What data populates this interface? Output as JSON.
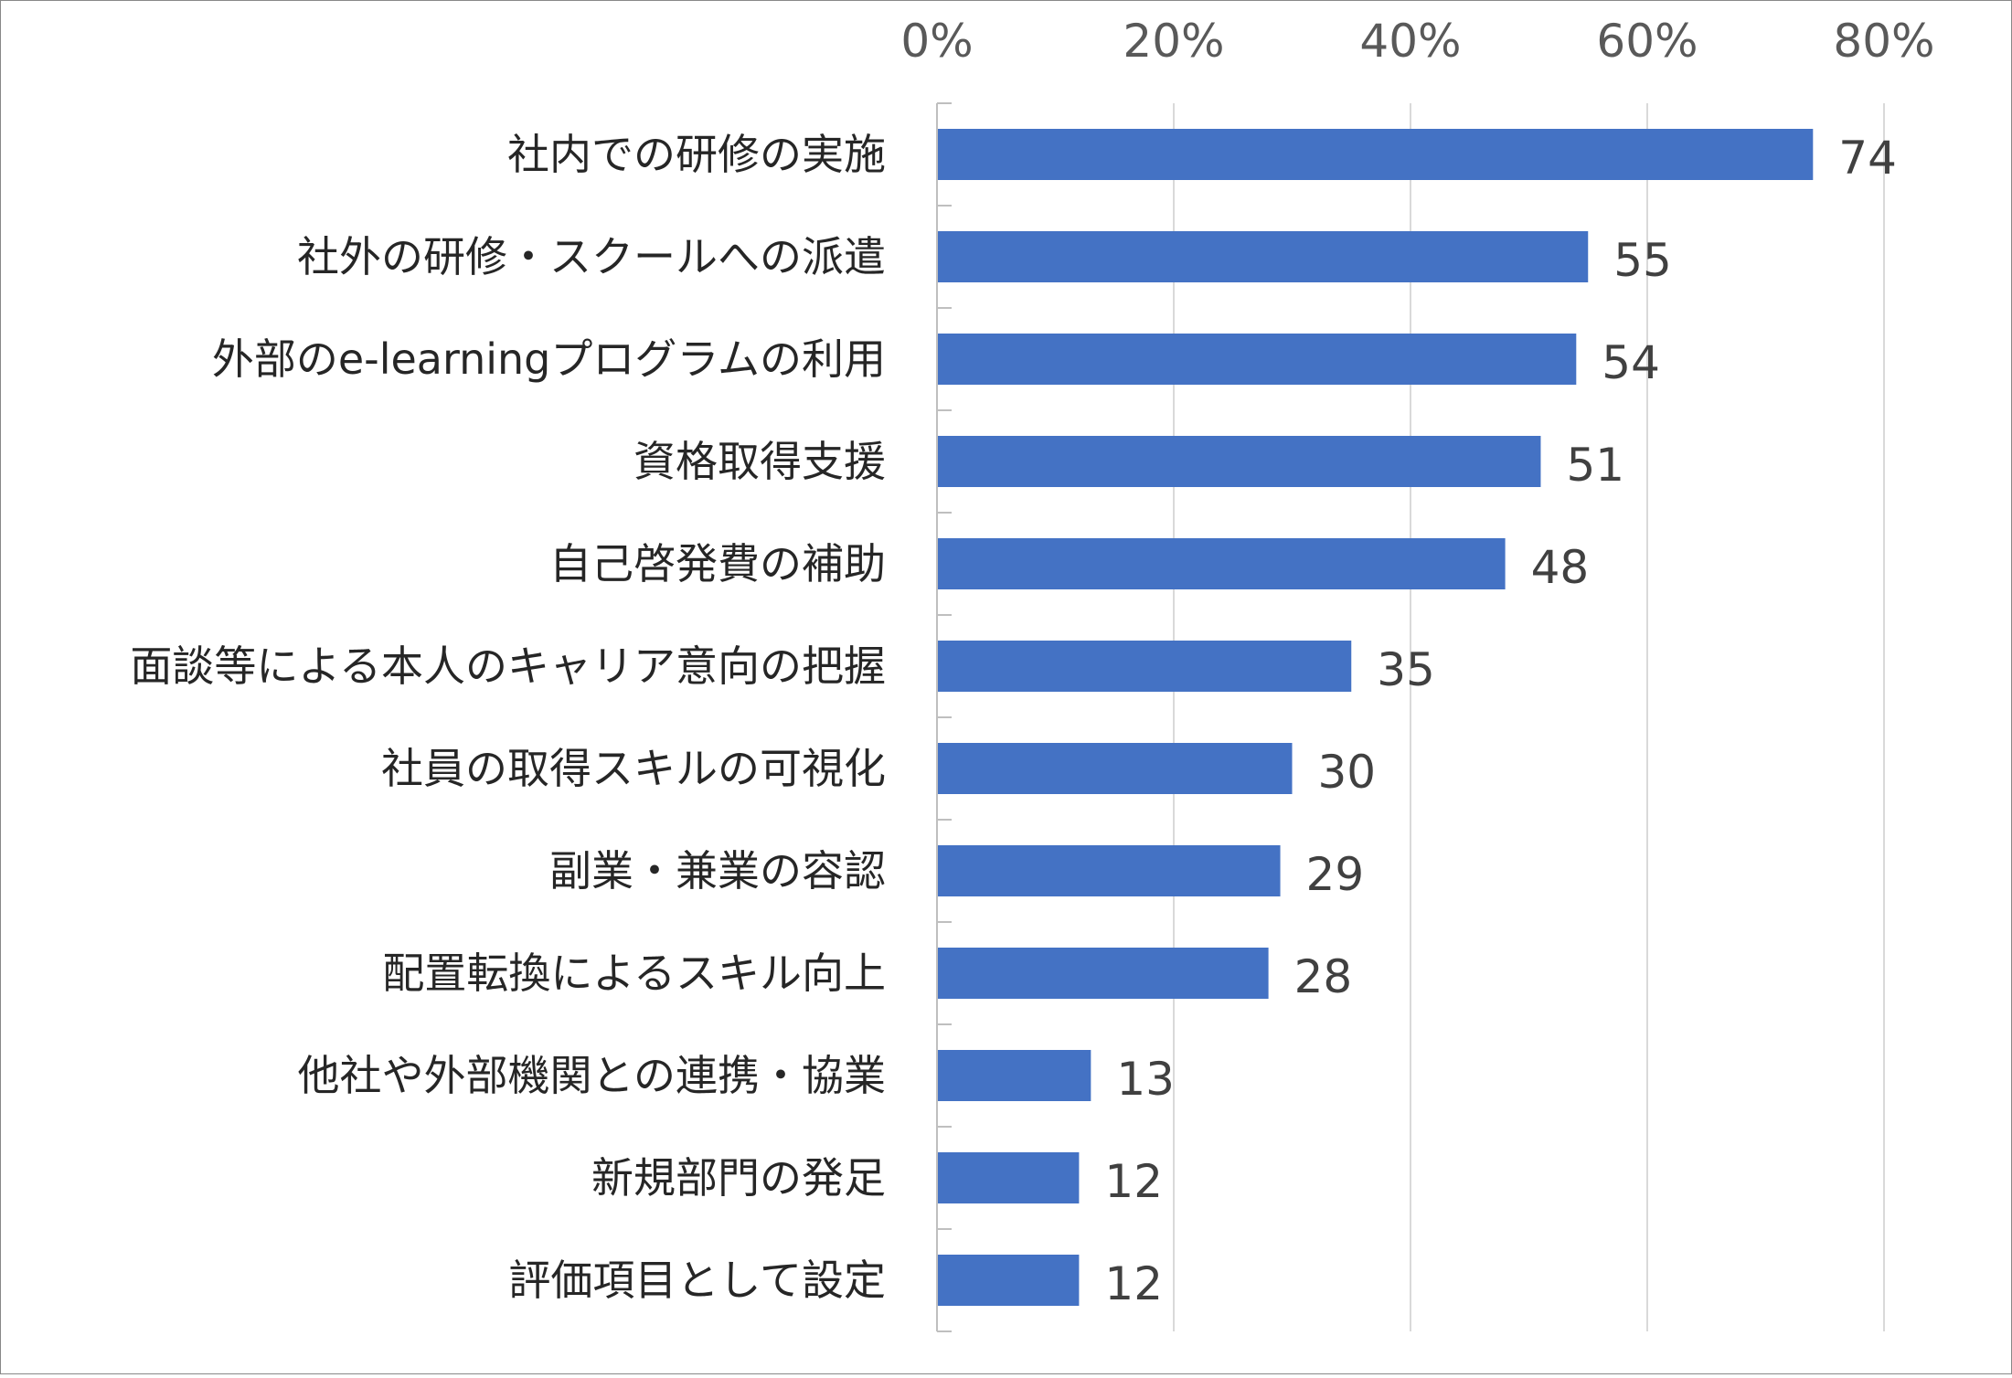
{
  "chart_data": {
    "type": "bar",
    "orientation": "horizontal",
    "categories": [
      "社内での研修の実施",
      "社外の研修・スクールへの派遣",
      "外部のe-learningプログラムの利用",
      "資格取得支援",
      "自己啓発費の補助",
      "面談等による本人のキャリア意向の把握",
      "社員の取得スキルの可視化",
      "副業・兼業の容認",
      "配置転換によるスキル向上",
      "他社や外部機関との連携・協業",
      "新規部門の発足",
      "評価項目として設定"
    ],
    "values": [
      74,
      55,
      54,
      51,
      48,
      35,
      30,
      29,
      28,
      13,
      12,
      12
    ],
    "xlim": [
      0,
      80
    ],
    "ticks": [
      {
        "value": 0,
        "label": "0%"
      },
      {
        "value": 20,
        "label": "20%"
      },
      {
        "value": 40,
        "label": "40%"
      },
      {
        "value": 60,
        "label": "60%"
      },
      {
        "value": 80,
        "label": "80%"
      }
    ],
    "axis_position": "top",
    "grid": true,
    "bar_color": "#4472C4",
    "grid_color": "#D9D9D9"
  }
}
